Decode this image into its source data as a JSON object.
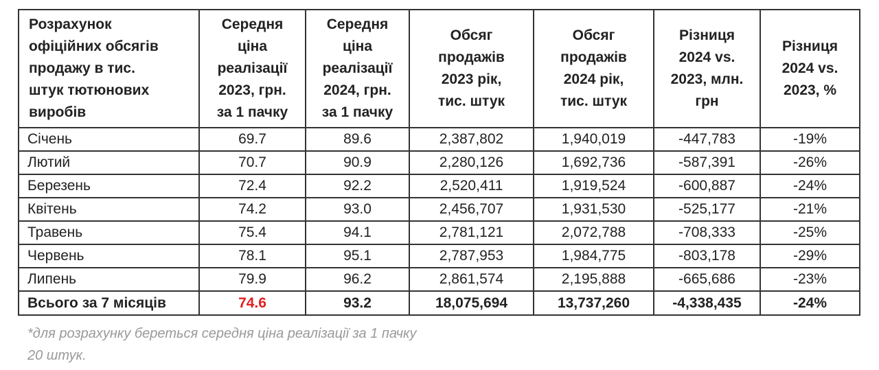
{
  "headers": [
    "Розрахунок\nофіційних обсягів\nпродажу в тис.\nштук тютюнових\nвиробів",
    "Середня\nціна\nреалізації\n2023, грн.\nза 1 пачку",
    "Середня\nціна\nреалізації\n2024, грн.\nза 1 пачку",
    "Обсяг\nпродажів\n2023 рік,\nтис. штук",
    "Обсяг\nпродажів\n2024 рік,\nтис. штук",
    "Різниця\n2024 vs.\n2023, млн.\nгрн",
    "Різниця\n2024 vs.\n2023, %"
  ],
  "rows": [
    [
      "Січень",
      "69.7",
      "89.6",
      "2,387,802",
      "1,940,019",
      "-447,783",
      "-19%"
    ],
    [
      "Лютий",
      "70.7",
      "90.9",
      "2,280,126",
      "1,692,736",
      "-587,391",
      "-26%"
    ],
    [
      "Березень",
      "72.4",
      "92.2",
      "2,520,411",
      "1,919,524",
      "-600,887",
      "-24%"
    ],
    [
      "Квітень",
      "74.2",
      "93.0",
      "2,456,707",
      "1,931,530",
      "-525,177",
      "-21%"
    ],
    [
      "Травень",
      "75.4",
      "94.1",
      "2,781,121",
      "2,072,788",
      "-708,333",
      "-25%"
    ],
    [
      "Червень",
      "78.1",
      "95.1",
      "2,787,953",
      "1,984,775",
      "-803,178",
      "-29%"
    ],
    [
      "Липень",
      "79.9",
      "96.2",
      "2,861,574",
      "2,195,888",
      "-665,686",
      "-23%"
    ]
  ],
  "total": [
    "Всього за 7 місяців",
    "74.6",
    "93.2",
    "18,075,694",
    "13,737,260",
    "-4,338,435",
    "-24%"
  ],
  "highlight_color": "#e02020",
  "footnote": "*для розрахунку береться середня ціна реалізації за 1 пачку\n20 штук."
}
